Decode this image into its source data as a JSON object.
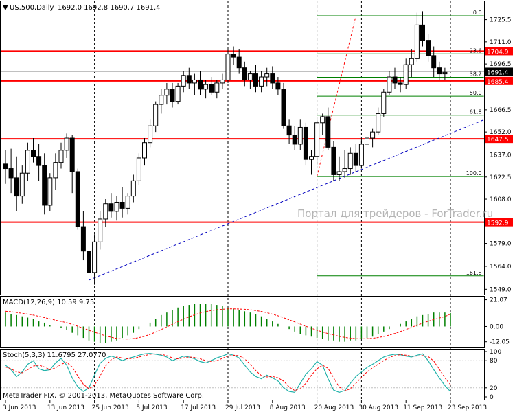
{
  "header": {
    "symbol": "US.500,Daily",
    "ohlc": "1692.0 1692.8 1690.7 1691.4"
  },
  "watermark": "Портал для трейдеров - ForTrader.ru",
  "copyright": "MetaTrader FIX, © 2001-2013, MetaQuotes Software Corp.",
  "colors": {
    "background": "#ffffff",
    "frame": "#000000",
    "level_line": "#ff0000",
    "fibo": "#008000",
    "trendline": "#0000c0",
    "macd_hist": "#008000",
    "macd_signal": "#ff0000",
    "stoch_main": "#20b2aa",
    "stoch_signal": "#ff0000",
    "label_bg_red": "#ff0000",
    "label_bg_black": "#000000"
  },
  "chart_data": [
    {
      "type": "candlestick",
      "title": "US.500,Daily",
      "ylim": [
        1546,
        1737
      ],
      "y_ticks": [
        1725.5,
        1711.0,
        1696.5,
        1681.5,
        1666.5,
        1652.0,
        1637.0,
        1622.5,
        1608.0,
        1593.0,
        1579.0,
        1564.0,
        1549.0
      ],
      "x_labels": [
        "3 Jun 2013",
        "13 Jun 2013",
        "25 Jun 2013",
        "5 Jul 2013",
        "17 Jul 2013",
        "29 Jul 2013",
        "8 Aug 2013",
        "20 Aug 2013",
        "30 Aug 2013",
        "11 Sep 2013",
        "23 Sep 2013"
      ],
      "x_label_index": [
        0,
        8,
        16,
        24,
        32,
        40,
        48,
        56,
        64,
        72,
        80
      ],
      "period_separators": [
        16,
        40,
        56,
        64,
        80
      ],
      "candles": [
        [
          1631,
          1640,
          1618,
          1628
        ],
        [
          1628,
          1641,
          1612,
          1622
        ],
        [
          1622,
          1636,
          1600,
          1610
        ],
        [
          1610,
          1630,
          1605,
          1625
        ],
        [
          1625,
          1645,
          1620,
          1640
        ],
        [
          1640,
          1648,
          1632,
          1636
        ],
        [
          1636,
          1644,
          1620,
          1630
        ],
        [
          1630,
          1638,
          1598,
          1604
        ],
        [
          1604,
          1625,
          1600,
          1622
        ],
        [
          1622,
          1638,
          1614,
          1632
        ],
        [
          1632,
          1645,
          1628,
          1640
        ],
        [
          1640,
          1651,
          1635,
          1648
        ],
        [
          1648,
          1650,
          1612,
          1626
        ],
        [
          1626,
          1628,
          1588,
          1590
        ],
        [
          1590,
          1600,
          1568,
          1574
        ],
        [
          1574,
          1580,
          1555,
          1560
        ],
        [
          1560,
          1585,
          1552,
          1580
        ],
        [
          1580,
          1600,
          1575,
          1595
        ],
        [
          1595,
          1608,
          1590,
          1605
        ],
        [
          1605,
          1612,
          1596,
          1600
        ],
        [
          1600,
          1610,
          1594,
          1606
        ],
        [
          1606,
          1616,
          1596,
          1602
        ],
        [
          1602,
          1612,
          1598,
          1610
        ],
        [
          1610,
          1624,
          1606,
          1620
        ],
        [
          1620,
          1638,
          1617,
          1635
        ],
        [
          1635,
          1648,
          1630,
          1645
        ],
        [
          1645,
          1660,
          1642,
          1656
        ],
        [
          1656,
          1672,
          1652,
          1670
        ],
        [
          1670,
          1680,
          1664,
          1676
        ],
        [
          1676,
          1684,
          1670,
          1680
        ],
        [
          1680,
          1684,
          1668,
          1672
        ],
        [
          1672,
          1684,
          1670,
          1682
        ],
        [
          1682,
          1692,
          1678,
          1689
        ],
        [
          1689,
          1694,
          1680,
          1684
        ],
        [
          1684,
          1690,
          1676,
          1686
        ],
        [
          1686,
          1692,
          1676,
          1680
        ],
        [
          1680,
          1686,
          1674,
          1683
        ],
        [
          1683,
          1688,
          1676,
          1678
        ],
        [
          1678,
          1686,
          1674,
          1684
        ],
        [
          1684,
          1690,
          1680,
          1686
        ],
        [
          1686,
          1706,
          1684,
          1703
        ],
        [
          1703,
          1708,
          1696,
          1701
        ],
        [
          1701,
          1706,
          1690,
          1694
        ],
        [
          1694,
          1698,
          1682,
          1686
        ],
        [
          1686,
          1692,
          1680,
          1690
        ],
        [
          1690,
          1696,
          1678,
          1682
        ],
        [
          1682,
          1692,
          1678,
          1688
        ],
        [
          1688,
          1694,
          1682,
          1690
        ],
        [
          1690,
          1695,
          1680,
          1684
        ],
        [
          1684,
          1688,
          1676,
          1680
        ],
        [
          1680,
          1684,
          1654,
          1656
        ],
        [
          1656,
          1660,
          1644,
          1650
        ],
        [
          1650,
          1656,
          1640,
          1644
        ],
        [
          1644,
          1660,
          1640,
          1655
        ],
        [
          1655,
          1658,
          1630,
          1634
        ],
        [
          1634,
          1640,
          1624,
          1636
        ],
        [
          1636,
          1660,
          1630,
          1658
        ],
        [
          1658,
          1664,
          1650,
          1662
        ],
        [
          1662,
          1668,
          1640,
          1642
        ],
        [
          1642,
          1646,
          1620,
          1624
        ],
        [
          1624,
          1636,
          1620,
          1626
        ],
        [
          1626,
          1640,
          1622,
          1628
        ],
        [
          1628,
          1642,
          1624,
          1638
        ],
        [
          1638,
          1644,
          1626,
          1630
        ],
        [
          1630,
          1648,
          1628,
          1644
        ],
        [
          1644,
          1652,
          1640,
          1648
        ],
        [
          1648,
          1654,
          1642,
          1652
        ],
        [
          1652,
          1668,
          1650,
          1664
        ],
        [
          1664,
          1680,
          1662,
          1678
        ],
        [
          1678,
          1692,
          1676,
          1688
        ],
        [
          1688,
          1694,
          1680,
          1684
        ],
        [
          1684,
          1688,
          1678,
          1683
        ],
        [
          1683,
          1700,
          1680,
          1696
        ],
        [
          1696,
          1706,
          1688,
          1700
        ],
        [
          1700,
          1730,
          1698,
          1722
        ],
        [
          1722,
          1731,
          1708,
          1712
        ],
        [
          1712,
          1716,
          1698,
          1702
        ],
        [
          1702,
          1708,
          1688,
          1694
        ],
        [
          1694,
          1698,
          1686,
          1690
        ],
        [
          1690,
          1694,
          1686,
          1691
        ]
      ],
      "levels": [
        {
          "value": 1704.9,
          "label": "1704.9"
        },
        {
          "value": 1685.4,
          "label": "1685.4"
        },
        {
          "value": 1647.5,
          "label": "1647.5"
        },
        {
          "value": 1592.9,
          "label": "1592.9"
        }
      ],
      "current_price": {
        "value": 1691.4,
        "label": "1691.4"
      },
      "fibo": {
        "high": 1728.0,
        "low": 1622.8,
        "start_index": 56,
        "end_index": 86,
        "levels": [
          {
            "ratio": 0.0,
            "label": "0.0"
          },
          {
            "ratio": 0.236,
            "label": "23.6"
          },
          {
            "ratio": 0.382,
            "label": "38.2"
          },
          {
            "ratio": 0.5,
            "label": "50.0"
          },
          {
            "ratio": 0.618,
            "label": "61.8"
          },
          {
            "ratio": 1.0,
            "label": "100.0"
          },
          {
            "ratio": 1.618,
            "label": "161.8"
          }
        ],
        "diagonal": {
          "from": [
            56,
            1622.8
          ],
          "to": [
            63,
            1728.0
          ]
        }
      },
      "trendline": {
        "from": [
          15,
          1555
        ],
        "to": [
          92,
          1660
        ]
      }
    },
    {
      "type": "bar",
      "title": "MACD(12,26,9) 10.59 9.75",
      "ylim": [
        -16,
        23
      ],
      "y_ticks": [
        21.07,
        0.0,
        -12.05
      ],
      "y_tick_labels": [
        "21.07",
        "0.00",
        "-12.05"
      ],
      "values": [
        11,
        10,
        9,
        8,
        7,
        6,
        4,
        3,
        1,
        0,
        -1,
        -3,
        -5,
        -7,
        -9,
        -11,
        -12,
        -13,
        -13,
        -12,
        -11,
        -9,
        -7,
        -5,
        -2,
        0,
        3,
        6,
        9,
        11,
        13,
        15,
        16,
        17,
        18,
        18,
        18,
        18,
        17,
        16,
        15,
        14,
        13,
        12,
        11,
        10,
        8,
        6,
        4,
        2,
        0,
        -2,
        -4,
        -6,
        -7,
        -8,
        -9,
        -10,
        -11,
        -11,
        -12,
        -12,
        -11,
        -11,
        -10,
        -9,
        -8,
        -6,
        -4,
        -2,
        0,
        2,
        4,
        6,
        8,
        9,
        10,
        11,
        11,
        11,
        10.6
      ],
      "signal": [
        12,
        11.6,
        11,
        10.4,
        9.7,
        9,
        8,
        7,
        6,
        5,
        4,
        3,
        1.6,
        0.2,
        -1.3,
        -3,
        -4.5,
        -6,
        -7.4,
        -8.5,
        -9.4,
        -9.8,
        -9.9,
        -9.5,
        -8.8,
        -7.7,
        -6.2,
        -4.4,
        -2.4,
        -0.4,
        1.7,
        3.8,
        5.8,
        7.6,
        9.2,
        10.6,
        11.7,
        12.6,
        13.2,
        13.6,
        13.9,
        13.9,
        13.8,
        13.6,
        13.2,
        12.6,
        11.8,
        10.9,
        9.7,
        8.4,
        6.9,
        5.3,
        3.6,
        1.9,
        0.2,
        -1.4,
        -2.9,
        -4.3,
        -5.6,
        -6.7,
        -7.8,
        -8.6,
        -9.2,
        -9.6,
        -9.7,
        -9.6,
        -9.3,
        -8.7,
        -7.9,
        -6.8,
        -5.5,
        -4,
        -2.4,
        -0.7,
        1,
        2.6,
        4.1,
        5.5,
        6.7,
        7.8,
        9.75
      ]
    },
    {
      "type": "line",
      "title": "Stoch(5,3,3) 11.6795 27.0770",
      "ylim": [
        0,
        100
      ],
      "y_ticks": [
        100,
        80,
        20,
        0
      ],
      "y_tick_labels": [
        "100",
        "80",
        "20",
        "0"
      ],
      "series": [
        {
          "values": [
            70,
            60,
            45,
            55,
            72,
            80,
            62,
            58,
            60,
            75,
            85,
            70,
            42,
            22,
            12,
            20,
            48,
            74,
            85,
            90,
            86,
            80,
            85,
            88,
            92,
            95,
            96,
            94,
            92,
            88,
            80,
            85,
            90,
            88,
            84,
            78,
            75,
            80,
            86,
            90,
            95,
            92,
            86,
            70,
            55,
            45,
            40,
            48,
            42,
            35,
            20,
            12,
            10,
            30,
            50,
            62,
            78,
            70,
            40,
            15,
            10,
            14,
            30,
            45,
            55,
            65,
            72,
            80,
            88,
            92,
            94,
            93,
            90,
            88,
            92,
            95,
            80,
            60,
            42,
            25,
            11.7
          ]
        },
        {
          "values": [
            66,
            62,
            55,
            53,
            60,
            68,
            70,
            66,
            60,
            64,
            72,
            76,
            66,
            46,
            28,
            18,
            26,
            46,
            68,
            82,
            88,
            86,
            84,
            85,
            88,
            91,
            94,
            95,
            94,
            91,
            86,
            84,
            86,
            88,
            87,
            84,
            80,
            78,
            80,
            85,
            90,
            92,
            91,
            84,
            72,
            58,
            47,
            44,
            45,
            42,
            35,
            22,
            14,
            18,
            30,
            48,
            62,
            70,
            63,
            42,
            22,
            13,
            18,
            30,
            43,
            55,
            64,
            72,
            80,
            87,
            91,
            93,
            92,
            90,
            90,
            91,
            89,
            79,
            61,
            42,
            27.1
          ]
        }
      ]
    }
  ]
}
